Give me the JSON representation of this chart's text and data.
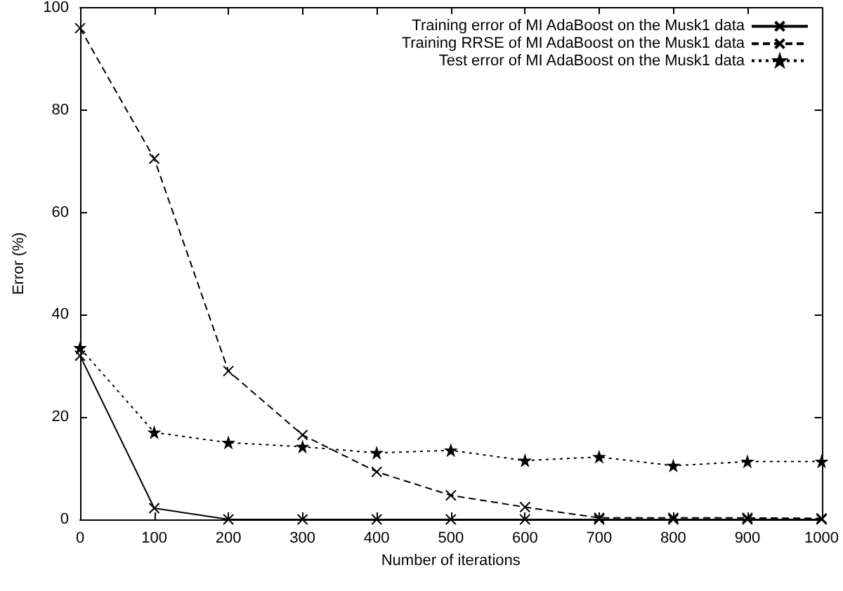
{
  "chart_data": {
    "type": "line",
    "xlabel": "Number of iterations",
    "ylabel": "Error (%)",
    "x": [
      0,
      100,
      200,
      300,
      400,
      500,
      600,
      700,
      800,
      900,
      1000
    ],
    "series": [
      {
        "name": "Training error of MI AdaBoost on the Musk1 data",
        "color": "#000000",
        "line_style": "solid",
        "marker": "cross",
        "values": [
          32,
          2.2,
          0,
          0,
          0,
          0,
          0,
          0,
          0,
          0,
          0
        ]
      },
      {
        "name": "Training RRSE of MI AdaBoost on the Musk1 data",
        "color": "#000000",
        "line_style": "dashed",
        "marker": "cross",
        "values": [
          96,
          70.5,
          29,
          16.5,
          9.3,
          4.7,
          2.4,
          0.3,
          0.3,
          0.3,
          0.2
        ]
      },
      {
        "name": "Test error of MI AdaBoost on the Musk1 data",
        "color": "#000000",
        "line_style": "dotted",
        "marker": "star",
        "values": [
          33.5,
          17,
          15,
          14.2,
          13,
          13.5,
          11.5,
          12.2,
          10.5,
          11.3,
          11.3
        ]
      }
    ],
    "xlim": [
      0,
      1000
    ],
    "xticks": [
      0,
      100,
      200,
      300,
      400,
      500,
      600,
      700,
      800,
      900,
      1000
    ],
    "ylim": [
      0,
      100
    ],
    "yticks": [
      0,
      20,
      40,
      60,
      80,
      100
    ],
    "grid": false,
    "legend": "top right"
  }
}
